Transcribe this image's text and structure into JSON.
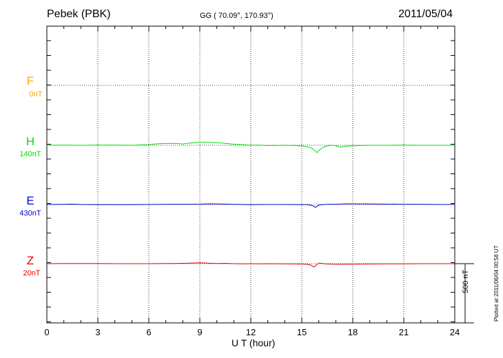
{
  "header": {
    "station": "Pebek (PBK)",
    "coords": "GG ( 70.09°, 170.93°)",
    "date": "2011/05/04"
  },
  "footer": {
    "plotted": "Plotted at 2011/06/04 00:58 UT"
  },
  "scale_bar": {
    "label": "500 nT",
    "value_nT": 500
  },
  "chart_data": {
    "type": "line",
    "title": "",
    "xlabel": "U T (hour)",
    "ylabel": "",
    "xlim": [
      0,
      24
    ],
    "x_ticks": [
      "0",
      "3",
      "6",
      "9",
      "12",
      "15",
      "18",
      "21",
      "24"
    ],
    "grid": true,
    "series": [
      {
        "name": "F",
        "scale_label": "0nT",
        "color": "#ffa500",
        "x": [],
        "values": []
      },
      {
        "name": "H",
        "scale_label": "140nT",
        "color": "#00e000",
        "x": [
          0,
          1,
          2,
          3,
          4,
          5,
          6,
          6.5,
          7,
          7.5,
          8,
          8.5,
          9,
          9.5,
          10,
          10.5,
          11,
          11.5,
          12,
          12.5,
          13,
          13.5,
          14,
          14.5,
          15,
          15.3,
          15.6,
          15.8,
          15.9,
          16.0,
          16.2,
          16.5,
          16.8,
          17.0,
          17.3,
          17.6,
          18,
          19,
          20,
          21,
          22,
          23,
          24
        ],
        "values": [
          0,
          1,
          0,
          1,
          1,
          0,
          6,
          12,
          15,
          16,
          11,
          20,
          26,
          25,
          22,
          16,
          9,
          6,
          0,
          2,
          -3,
          -1,
          0,
          -2,
          -6,
          -12,
          -25,
          -50,
          -62,
          -45,
          -20,
          -5,
          0,
          -5,
          -15,
          -8,
          -4,
          0,
          0,
          1,
          0,
          0,
          0
        ]
      },
      {
        "name": "E",
        "scale_label": "430nT",
        "color": "#0000d0",
        "x": [
          0,
          1,
          1.5,
          2,
          3,
          4,
          5,
          6,
          7,
          8,
          9,
          9.5,
          10,
          10.5,
          11,
          11.5,
          12,
          13,
          14,
          15,
          15.3,
          15.6,
          15.7,
          15.8,
          15.9,
          16.0,
          16.2,
          16.5,
          17,
          17.5,
          18,
          19,
          20,
          21,
          22,
          23,
          24
        ],
        "values": [
          0,
          1,
          3,
          0,
          -1,
          -2,
          -1,
          0,
          1,
          2,
          3,
          5,
          4,
          3,
          1,
          0,
          -1,
          0,
          0,
          -1,
          -2,
          -8,
          -15,
          -25,
          -15,
          -5,
          -2,
          1,
          2,
          5,
          5,
          4,
          3,
          2,
          1,
          0,
          0
        ]
      },
      {
        "name": "Z",
        "scale_label": "20nT",
        "color": "#e00000",
        "x": [
          0,
          1,
          2,
          3,
          4,
          5,
          6,
          7,
          7.5,
          8,
          8.5,
          9,
          9.5,
          10,
          10.5,
          11,
          11.5,
          12,
          12.5,
          13,
          14,
          15,
          15.3,
          15.5,
          15.6,
          15.7,
          15.8,
          15.9,
          16.0,
          16.2,
          16.5,
          17,
          18,
          19,
          20,
          21,
          22,
          23,
          24
        ],
        "values": [
          0,
          1,
          2,
          1,
          0,
          0,
          0,
          1,
          2,
          3,
          5,
          7,
          4,
          2,
          3,
          0,
          -2,
          0,
          -1,
          0,
          -1,
          -3,
          -5,
          -10,
          -18,
          -28,
          -20,
          -5,
          5,
          2,
          -3,
          -5,
          -4,
          -3,
          -2,
          -1,
          0,
          0,
          0
        ]
      }
    ]
  }
}
